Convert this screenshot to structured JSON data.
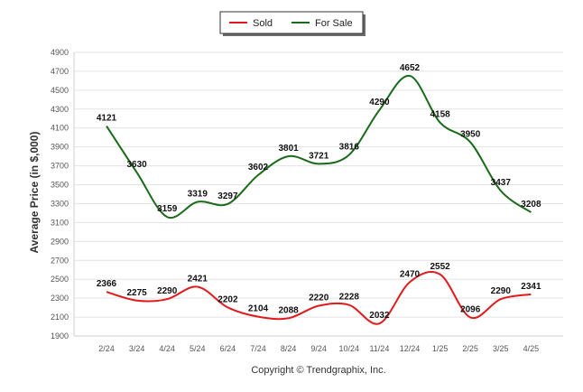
{
  "chart_data": {
    "type": "line",
    "ylabel": "Average Price (in $,000)",
    "xlabel": "",
    "credit": "Copyright © Trendgraphix, Inc.",
    "categories": [
      "2/24",
      "3/24",
      "4/24",
      "5/24",
      "6/24",
      "7/24",
      "8/24",
      "9/24",
      "10/24",
      "11/24",
      "12/24",
      "1/25",
      "2/25",
      "3/25",
      "4/25"
    ],
    "ylim": [
      1900,
      4900
    ],
    "yticks": [
      "1900",
      "2100",
      "2300",
      "2500",
      "2700",
      "2900",
      "3100",
      "3300",
      "3500",
      "3700",
      "3900",
      "4100",
      "4300",
      "4500",
      "4700",
      "4900"
    ],
    "grid": true,
    "legend_position": "top-center",
    "series": [
      {
        "name": "Sold",
        "color": "#e31a1c",
        "values": [
          2366,
          2275,
          2290,
          2421,
          2202,
          2104,
          2088,
          2220,
          2228,
          2032,
          2470,
          2552,
          2096,
          2290,
          2341
        ]
      },
      {
        "name": "For Sale",
        "color": "#1a6b1a",
        "values": [
          4121,
          3630,
          3159,
          3319,
          3297,
          3602,
          3801,
          3721,
          3816,
          4290,
          4652,
          4158,
          3950,
          3437,
          3208
        ]
      }
    ]
  }
}
